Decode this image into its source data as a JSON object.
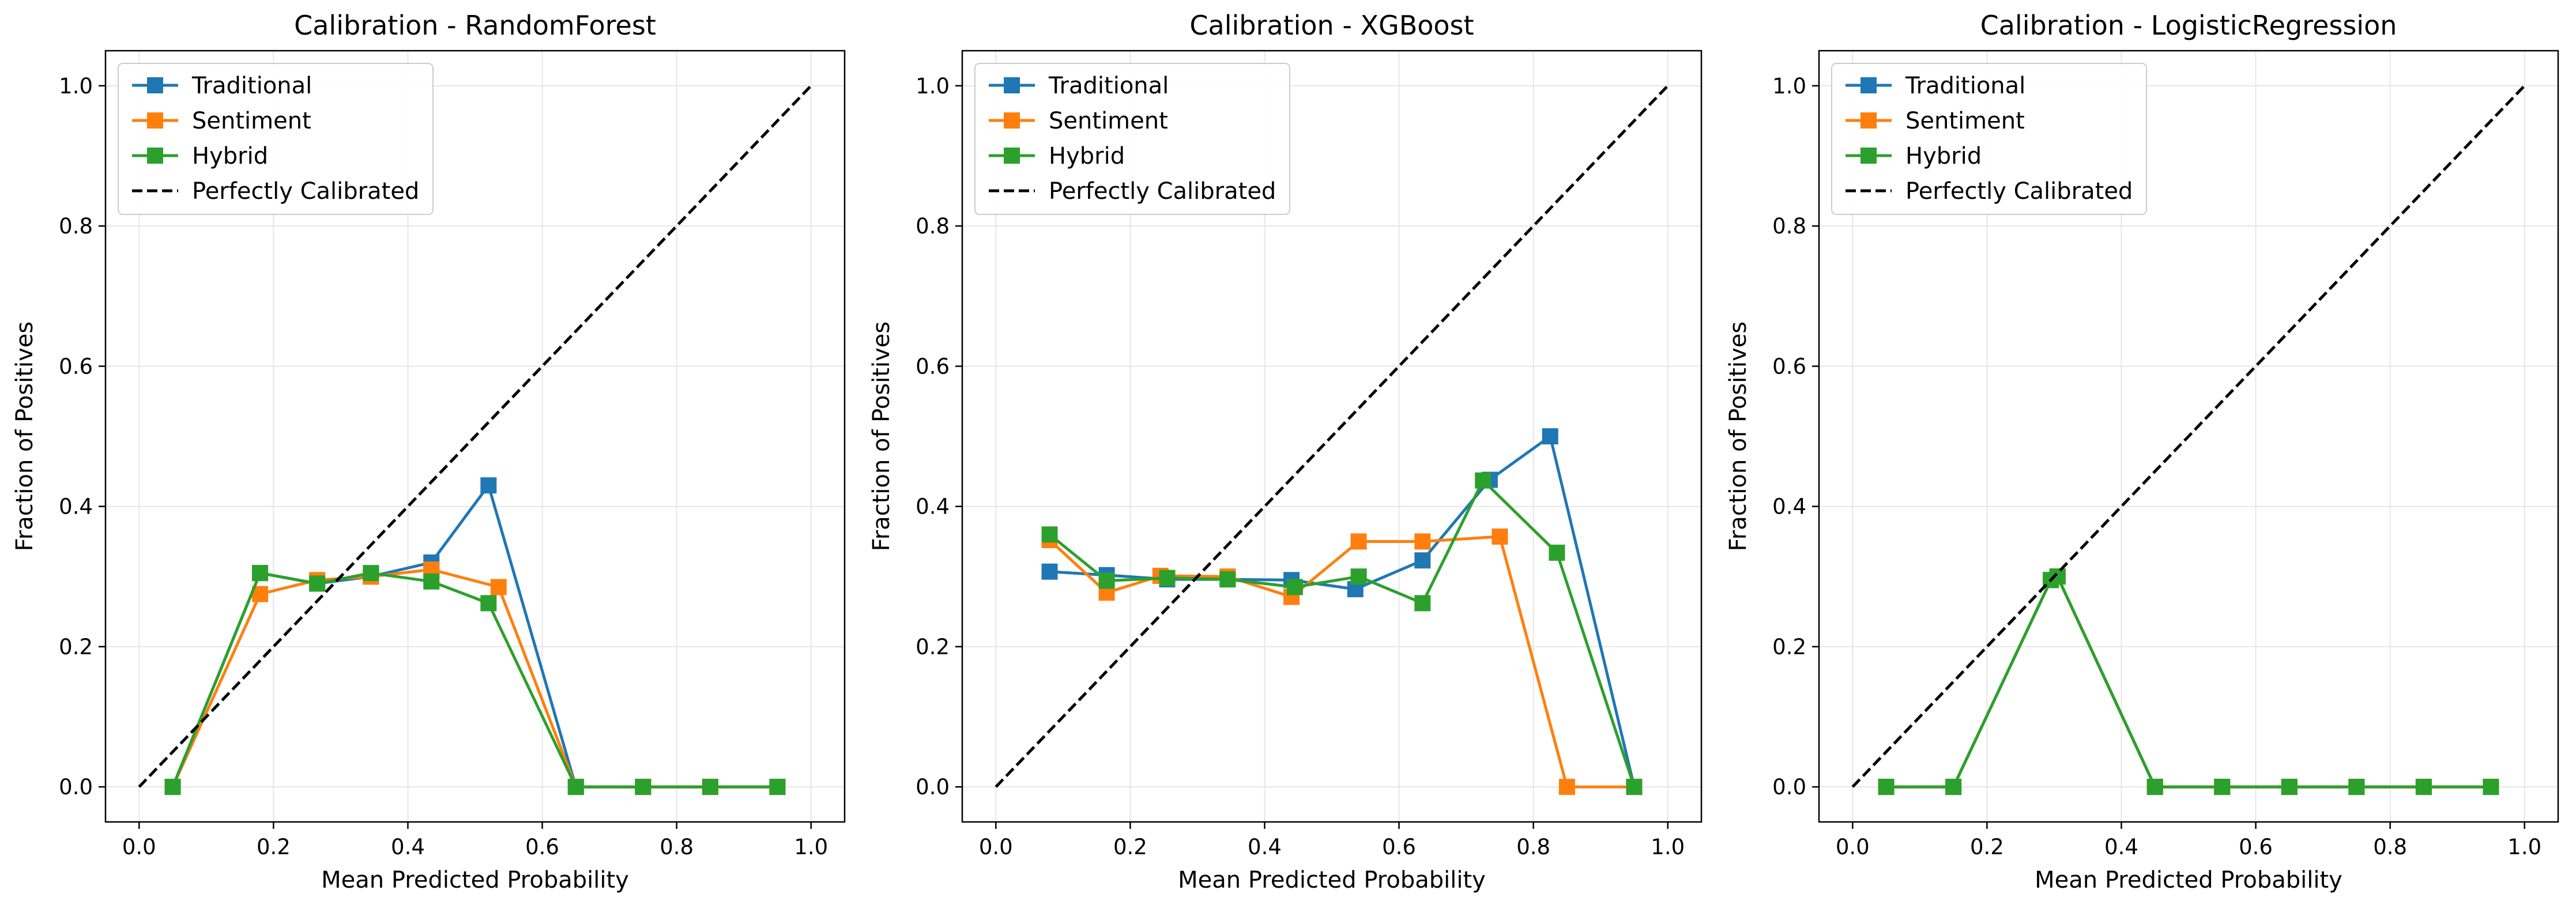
{
  "chart_data": [
    {
      "type": "line",
      "title": "Calibration - RandomForest",
      "xlabel": "Mean Predicted Probability",
      "ylabel": "Fraction of Positives",
      "xlim": [
        -0.05,
        1.05
      ],
      "ylim": [
        -0.05,
        1.05
      ],
      "xticks": [
        "0.0",
        "0.2",
        "0.4",
        "0.6",
        "0.8",
        "1.0"
      ],
      "yticks": [
        "0.0",
        "0.2",
        "0.4",
        "0.6",
        "0.8",
        "1.0"
      ],
      "grid": true,
      "legend_position": "top-left",
      "series": [
        {
          "name": "Traditional",
          "color": "#1f77b4",
          "marker": "square",
          "x": [
            0.05,
            0.18,
            0.265,
            0.345,
            0.435,
            0.52,
            0.65,
            0.75,
            0.85,
            0.95
          ],
          "y": [
            0.0,
            0.305,
            0.29,
            0.3,
            0.32,
            0.43,
            0.0,
            0.0,
            0.0,
            0.0
          ]
        },
        {
          "name": "Sentiment",
          "color": "#ff7f0e",
          "marker": "square",
          "x": [
            0.05,
            0.18,
            0.265,
            0.345,
            0.435,
            0.535,
            0.65,
            0.75,
            0.85,
            0.95
          ],
          "y": [
            0.0,
            0.275,
            0.295,
            0.3,
            0.31,
            0.285,
            0.0,
            0.0,
            0.0,
            0.0
          ]
        },
        {
          "name": "Hybrid",
          "color": "#2ca02c",
          "marker": "square",
          "x": [
            0.05,
            0.18,
            0.265,
            0.345,
            0.435,
            0.52,
            0.65,
            0.75,
            0.85,
            0.95
          ],
          "y": [
            0.0,
            0.305,
            0.29,
            0.305,
            0.293,
            0.262,
            0.0,
            0.0,
            0.0,
            0.0
          ]
        },
        {
          "name": "Perfectly Calibrated",
          "color": "#000000",
          "dashed": true,
          "x": [
            0,
            1
          ],
          "y": [
            0,
            1
          ]
        }
      ]
    },
    {
      "type": "line",
      "title": "Calibration - XGBoost",
      "xlabel": "Mean Predicted Probability",
      "ylabel": "Fraction of Positives",
      "xlim": [
        -0.05,
        1.05
      ],
      "ylim": [
        -0.05,
        1.05
      ],
      "xticks": [
        "0.0",
        "0.2",
        "0.4",
        "0.6",
        "0.8",
        "1.0"
      ],
      "yticks": [
        "0.0",
        "0.2",
        "0.4",
        "0.6",
        "0.8",
        "1.0"
      ],
      "grid": true,
      "legend_position": "top-left",
      "series": [
        {
          "name": "Traditional",
          "color": "#1f77b4",
          "marker": "square",
          "x": [
            0.08,
            0.165,
            0.255,
            0.345,
            0.44,
            0.535,
            0.635,
            0.735,
            0.825,
            0.95
          ],
          "y": [
            0.307,
            0.302,
            0.296,
            0.296,
            0.295,
            0.282,
            0.323,
            0.438,
            0.5,
            0.0
          ]
        },
        {
          "name": "Sentiment",
          "color": "#ff7f0e",
          "marker": "square",
          "x": [
            0.08,
            0.165,
            0.245,
            0.345,
            0.44,
            0.54,
            0.635,
            0.75,
            0.85,
            0.95
          ],
          "y": [
            0.352,
            0.277,
            0.301,
            0.3,
            0.271,
            0.35,
            0.35,
            0.357,
            0.0,
            0.0
          ]
        },
        {
          "name": "Hybrid",
          "color": "#2ca02c",
          "marker": "square",
          "x": [
            0.08,
            0.165,
            0.255,
            0.345,
            0.445,
            0.54,
            0.635,
            0.725,
            0.835,
            0.95
          ],
          "y": [
            0.36,
            0.294,
            0.298,
            0.296,
            0.285,
            0.3,
            0.262,
            0.437,
            0.334,
            0.0
          ]
        },
        {
          "name": "Perfectly Calibrated",
          "color": "#000000",
          "dashed": true,
          "x": [
            0,
            1
          ],
          "y": [
            0,
            1
          ]
        }
      ]
    },
    {
      "type": "line",
      "title": "Calibration - LogisticRegression",
      "xlabel": "Mean Predicted Probability",
      "ylabel": "Fraction of Positives",
      "xlim": [
        -0.05,
        1.05
      ],
      "ylim": [
        -0.05,
        1.05
      ],
      "xticks": [
        "0.0",
        "0.2",
        "0.4",
        "0.6",
        "0.8",
        "1.0"
      ],
      "yticks": [
        "0.0",
        "0.2",
        "0.4",
        "0.6",
        "0.8",
        "1.0"
      ],
      "grid": true,
      "legend_position": "top-left",
      "series": [
        {
          "name": "Traditional",
          "color": "#1f77b4",
          "marker": "square",
          "x": [
            0.05,
            0.15,
            0.295,
            0.305,
            0.45,
            0.55,
            0.65,
            0.75,
            0.85,
            0.95
          ],
          "y": [
            0.0,
            0.0,
            0.295,
            0.3,
            0.0,
            0.0,
            0.0,
            0.0,
            0.0,
            0.0
          ]
        },
        {
          "name": "Sentiment",
          "color": "#ff7f0e",
          "marker": "square",
          "x": [
            0.05,
            0.15,
            0.295,
            0.305,
            0.45,
            0.55,
            0.65,
            0.75,
            0.85,
            0.95
          ],
          "y": [
            0.0,
            0.0,
            0.295,
            0.3,
            0.0,
            0.0,
            0.0,
            0.0,
            0.0,
            0.0
          ]
        },
        {
          "name": "Hybrid",
          "color": "#2ca02c",
          "marker": "square",
          "x": [
            0.05,
            0.15,
            0.295,
            0.305,
            0.45,
            0.55,
            0.65,
            0.75,
            0.85,
            0.95
          ],
          "y": [
            0.0,
            0.0,
            0.295,
            0.3,
            0.0,
            0.0,
            0.0,
            0.0,
            0.0,
            0.0
          ]
        },
        {
          "name": "Perfectly Calibrated",
          "color": "#000000",
          "dashed": true,
          "x": [
            0,
            1
          ],
          "y": [
            0,
            1
          ]
        }
      ]
    }
  ]
}
